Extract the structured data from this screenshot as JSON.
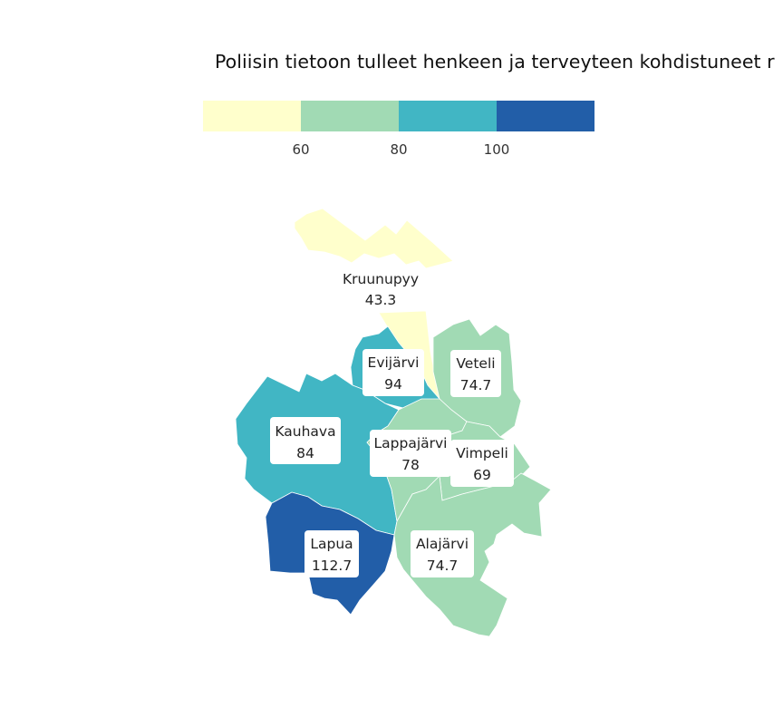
{
  "title": "Poliisin tietoon tulleet henkeen ja terveyteen kohdistuneet r",
  "legend": {
    "ticks": [
      "60",
      "80",
      "100"
    ],
    "colors": [
      "#ffffcc",
      "#a1dab4",
      "#41b6c4",
      "#225ea8"
    ]
  },
  "regions": [
    {
      "id": "kruunupyy",
      "name": "Kruunupyy",
      "value": "43.3",
      "color": "#ffffcc"
    },
    {
      "id": "evijarvi",
      "name": "Evijärvi",
      "value": "94",
      "color": "#41b6c4"
    },
    {
      "id": "veteli",
      "name": "Veteli",
      "value": "74.7",
      "color": "#a1dab4"
    },
    {
      "id": "kauhava",
      "name": "Kauhava",
      "value": "84",
      "color": "#41b6c4"
    },
    {
      "id": "lappajarvi",
      "name": "Lappajärvi",
      "value": "78",
      "color": "#a1dab4"
    },
    {
      "id": "vimpeli",
      "name": "Vimpeli",
      "value": "69",
      "color": "#a1dab4"
    },
    {
      "id": "lapua",
      "name": "Lapua",
      "value": "112.7",
      "color": "#225ea8"
    },
    {
      "id": "alajarvi",
      "name": "Alajärvi",
      "value": "74.7",
      "color": "#a1dab4"
    }
  ]
}
